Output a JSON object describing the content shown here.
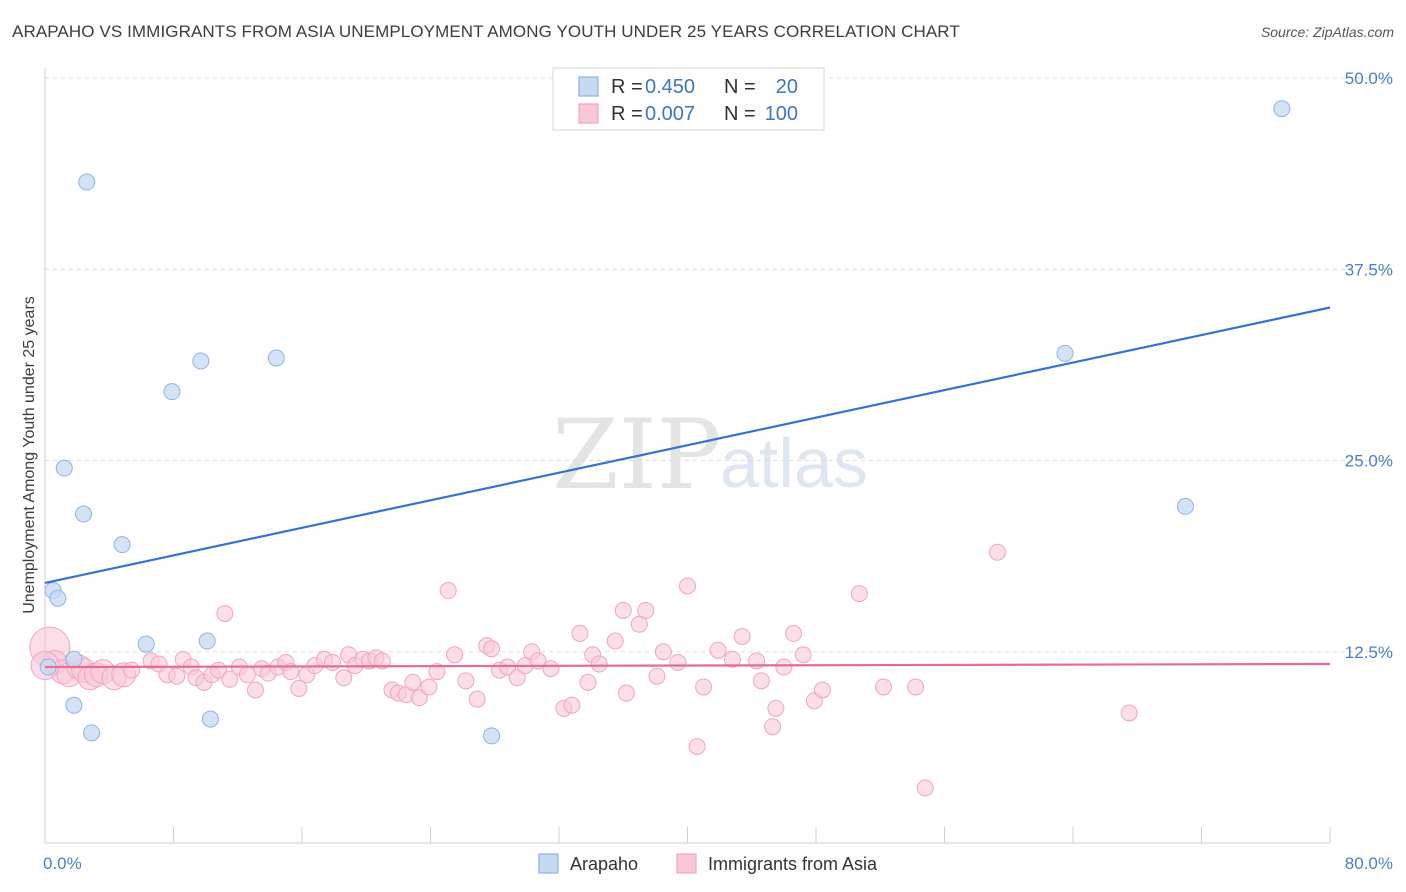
{
  "chart_data": {
    "type": "scatter",
    "title": "ARAPAHO VS IMMIGRANTS FROM ASIA UNEMPLOYMENT AMONG YOUTH UNDER 25 YEARS CORRELATION CHART",
    "source": "Source: ZipAtlas.com",
    "xlabel": "",
    "ylabel": "Unemployment Among Youth under 25 years",
    "xlim": [
      0,
      80
    ],
    "ylim": [
      0,
      50
    ],
    "x_tick_labels": [
      "0.0%",
      "80.0%"
    ],
    "y_ticks": [
      12.5,
      25.0,
      37.5,
      50.0
    ],
    "y_tick_labels": [
      "12.5%",
      "25.0%",
      "37.5%",
      "50.0%"
    ],
    "grid": true,
    "watermark": [
      "ZIP",
      "atlas"
    ],
    "legend": {
      "rows": [
        {
          "r_label": "R =",
          "r_value": "0.450",
          "n_label": "N =",
          "n_value": "20"
        },
        {
          "r_label": "R =",
          "r_value": "0.007",
          "n_label": "N =",
          "n_value": "100"
        }
      ]
    },
    "series": [
      {
        "name": "Arapaho",
        "color": "#8db4e3",
        "fill": "#c4d9f2",
        "line_color": "#3573cf",
        "trend": [
          [
            0,
            17.0
          ],
          [
            80,
            35.0
          ]
        ],
        "points": [
          [
            0.2,
            11.5
          ],
          [
            0.5,
            16.5
          ],
          [
            0.8,
            16.0
          ],
          [
            1.2,
            24.5
          ],
          [
            1.8,
            12.0
          ],
          [
            1.8,
            9.0
          ],
          [
            2.4,
            21.5
          ],
          [
            2.6,
            43.2
          ],
          [
            2.9,
            7.2
          ],
          [
            4.8,
            19.5
          ],
          [
            6.3,
            13.0
          ],
          [
            7.9,
            29.5
          ],
          [
            9.7,
            31.5
          ],
          [
            10.1,
            13.2
          ],
          [
            10.3,
            8.1
          ],
          [
            14.4,
            31.7
          ],
          [
            27.8,
            7.0
          ],
          [
            63.5,
            32.0
          ],
          [
            71.0,
            22.0
          ],
          [
            77.0,
            48.0
          ]
        ]
      },
      {
        "name": "Immigrants from Asia",
        "color": "#f0a5bf",
        "fill": "#f8c8d8",
        "line_color": "#e56b94",
        "trend": [
          [
            0,
            11.5
          ],
          [
            80,
            11.7
          ]
        ],
        "points": [
          [
            0.3,
            12.8
          ],
          [
            0.6,
            11.8
          ],
          [
            1.1,
            11.2
          ],
          [
            1.5,
            11.0
          ],
          [
            2.1,
            11.5
          ],
          [
            2.4,
            11.3
          ],
          [
            2.8,
            10.8
          ],
          [
            3.2,
            11.0
          ],
          [
            3.6,
            11.2
          ],
          [
            4.3,
            10.8
          ],
          [
            4.9,
            11.0
          ],
          [
            5.4,
            11.3
          ],
          [
            6.6,
            11.9
          ],
          [
            7.1,
            11.7
          ],
          [
            7.6,
            11.0
          ],
          [
            8.2,
            10.9
          ],
          [
            8.6,
            12.0
          ],
          [
            9.1,
            11.5
          ],
          [
            9.4,
            10.8
          ],
          [
            9.9,
            10.5
          ],
          [
            10.4,
            11.0
          ],
          [
            10.8,
            11.3
          ],
          [
            11.2,
            15.0
          ],
          [
            11.5,
            10.7
          ],
          [
            12.1,
            11.5
          ],
          [
            12.6,
            11.0
          ],
          [
            13.1,
            10.0
          ],
          [
            13.5,
            11.4
          ],
          [
            13.9,
            11.1
          ],
          [
            14.5,
            11.5
          ],
          [
            15.0,
            11.8
          ],
          [
            15.3,
            11.2
          ],
          [
            15.8,
            10.1
          ],
          [
            16.3,
            11.0
          ],
          [
            16.8,
            11.6
          ],
          [
            17.4,
            12.0
          ],
          [
            17.9,
            11.8
          ],
          [
            18.6,
            10.8
          ],
          [
            18.9,
            12.3
          ],
          [
            19.3,
            11.6
          ],
          [
            19.8,
            12.0
          ],
          [
            20.2,
            11.9
          ],
          [
            20.6,
            12.1
          ],
          [
            21.0,
            11.9
          ],
          [
            21.6,
            10.0
          ],
          [
            22.0,
            9.8
          ],
          [
            22.5,
            9.7
          ],
          [
            22.9,
            10.5
          ],
          [
            23.3,
            9.5
          ],
          [
            23.9,
            10.2
          ],
          [
            24.4,
            11.2
          ],
          [
            25.1,
            16.5
          ],
          [
            25.5,
            12.3
          ],
          [
            26.2,
            10.6
          ],
          [
            26.9,
            9.4
          ],
          [
            27.5,
            12.9
          ],
          [
            27.8,
            12.7
          ],
          [
            28.3,
            11.3
          ],
          [
            28.8,
            11.5
          ],
          [
            29.4,
            10.8
          ],
          [
            29.9,
            11.6
          ],
          [
            30.3,
            12.5
          ],
          [
            30.7,
            11.9
          ],
          [
            31.5,
            11.4
          ],
          [
            32.3,
            8.8
          ],
          [
            32.8,
            9.0
          ],
          [
            33.3,
            13.7
          ],
          [
            33.8,
            10.5
          ],
          [
            34.1,
            12.3
          ],
          [
            34.5,
            11.7
          ],
          [
            35.5,
            13.2
          ],
          [
            36.0,
            15.2
          ],
          [
            36.2,
            9.8
          ],
          [
            37.0,
            14.3
          ],
          [
            37.4,
            15.2
          ],
          [
            38.1,
            10.9
          ],
          [
            38.5,
            12.5
          ],
          [
            39.4,
            11.8
          ],
          [
            40.0,
            16.8
          ],
          [
            40.6,
            6.3
          ],
          [
            41.0,
            10.2
          ],
          [
            41.9,
            12.6
          ],
          [
            42.8,
            12.0
          ],
          [
            43.4,
            13.5
          ],
          [
            44.3,
            11.9
          ],
          [
            44.6,
            10.6
          ],
          [
            45.3,
            7.6
          ],
          [
            45.5,
            8.8
          ],
          [
            46.0,
            11.5
          ],
          [
            46.6,
            13.7
          ],
          [
            47.2,
            12.3
          ],
          [
            47.9,
            9.3
          ],
          [
            48.4,
            10.0
          ],
          [
            50.7,
            16.3
          ],
          [
            52.2,
            10.2
          ],
          [
            54.2,
            10.2
          ],
          [
            54.8,
            3.6
          ],
          [
            59.3,
            19.0
          ],
          [
            67.5,
            8.5
          ],
          [
            0.0,
            11.6
          ]
        ]
      }
    ]
  }
}
